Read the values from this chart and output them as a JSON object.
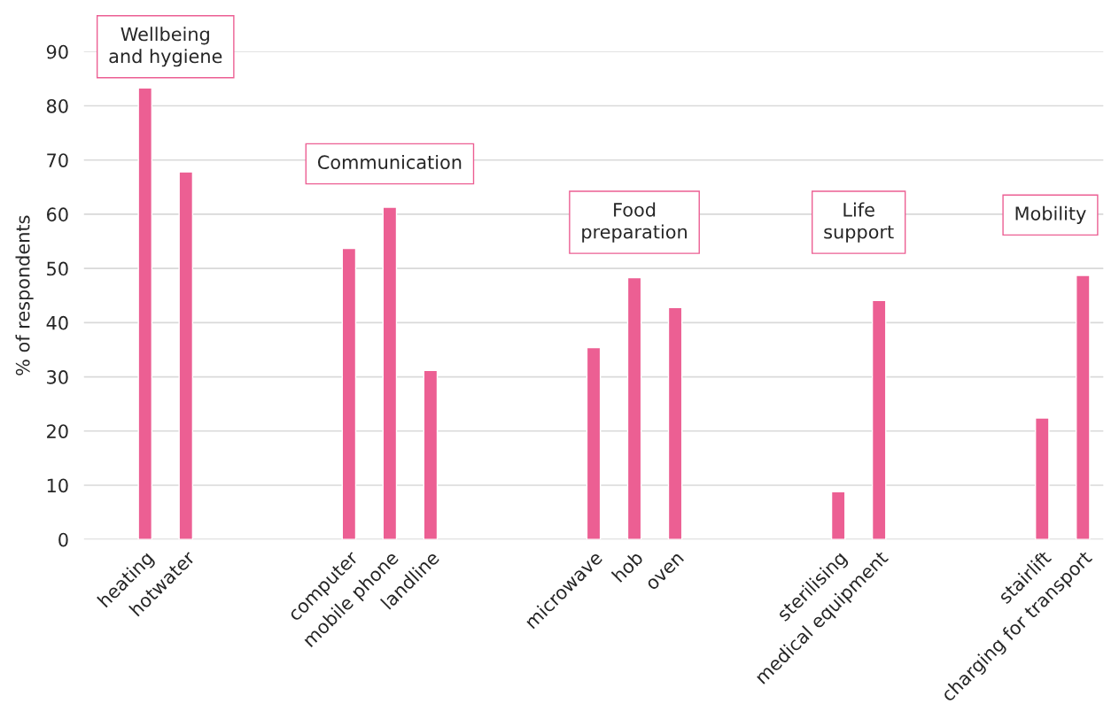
{
  "chart_data": {
    "type": "bar",
    "ylabel": "% of respondents",
    "categories": [
      null,
      "heating",
      "hotwater",
      null,
      null,
      null,
      "computer",
      "mobile phone",
      "landline",
      null,
      null,
      null,
      "microwave",
      "hob",
      "oven",
      null,
      null,
      null,
      "sterilising",
      "medical equipment",
      null,
      null,
      null,
      "stairlift",
      "charging for transport"
    ],
    "values": [
      null,
      83.3,
      67.8,
      null,
      null,
      null,
      53.7,
      61.3,
      31.2,
      null,
      null,
      null,
      35.4,
      48.3,
      42.8,
      null,
      null,
      null,
      8.8,
      44.1,
      null,
      null,
      null,
      22.4,
      48.7
    ],
    "color": "#ec5f93",
    "ylim": [
      0,
      90
    ],
    "yticks": [
      0,
      10,
      20,
      30,
      40,
      50,
      60,
      70,
      80,
      90
    ],
    "grid": "y",
    "annotations": [
      "Wellbeing\nand hygiene",
      "Communication",
      "Food\npreparation",
      "Life\nsupport",
      "Mobility"
    ]
  }
}
